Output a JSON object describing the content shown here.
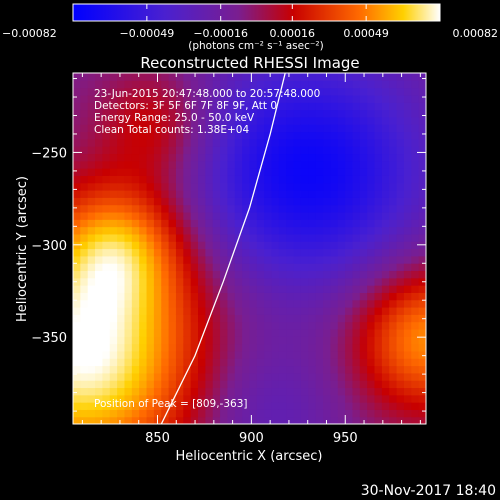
{
  "chart_data": {
    "type": "heatmap",
    "title": "Reconstructed RHESSI Image",
    "xlabel": "Heliocentric X (arcsec)",
    "ylabel": "Heliocentric Y (arcsec)",
    "xlim": [
      805,
      993
    ],
    "ylim": [
      -397,
      -207
    ],
    "x_ticks": [
      850,
      900,
      950
    ],
    "y_ticks": [
      -250,
      -300,
      -350
    ],
    "colorbar": {
      "ticks": [
        "-0.00082",
        "-0.00049",
        "-0.00016",
        "0.00016",
        "0.00049",
        "0.00082"
      ],
      "range": [
        -0.00082,
        0.00082
      ],
      "unit_label": "(photons cm⁻² s⁻¹ asec⁻²)",
      "stops": [
        "#0000ff",
        "#5a1fc8",
        "#8a1e7c",
        "#c80000",
        "#ff6a00",
        "#ffd000",
        "#ffffff"
      ]
    },
    "info": [
      "23-Jun-2015 20:47:48.000 to 20:57:48.000",
      "Detectors: 3F 5F 6F 7F 8F 9F, Att 0",
      "Energy Range: 25.0 - 50.0 keV",
      "Clean    Total counts: 1.38E+04"
    ],
    "peak_label": "Position of Peak = [809,-363]",
    "peak": [
      809,
      -363
    ],
    "limb_curve": [
      [
        852,
        -397
      ],
      [
        870,
        -360
      ],
      [
        885,
        -320
      ],
      [
        899,
        -280
      ],
      [
        910,
        -240
      ],
      [
        918,
        -207
      ]
    ],
    "sources": [
      {
        "x": 812,
        "y": -360,
        "amp": 1.0,
        "sigma": 45
      },
      {
        "x": 830,
        "y": -300,
        "amp": 0.55,
        "sigma": 25
      },
      {
        "x": 850,
        "y": -235,
        "amp": 0.35,
        "sigma": 22
      },
      {
        "x": 993,
        "y": -350,
        "amp": 0.7,
        "sigma": 28
      },
      {
        "x": 930,
        "y": -260,
        "amp": -0.75,
        "sigma": 45
      },
      {
        "x": 905,
        "y": -390,
        "amp": -0.25,
        "sigma": 30
      }
    ]
  },
  "footer": {
    "timestamp": "30-Nov-2017 18:40"
  }
}
